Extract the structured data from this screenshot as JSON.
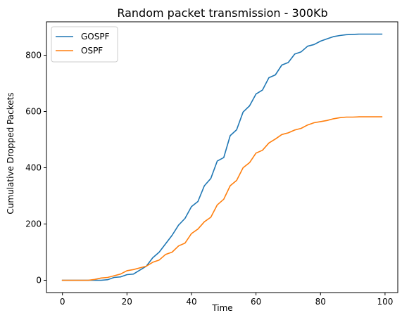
{
  "chart_data": {
    "type": "line",
    "title": "Random packet transmission - 300Kb",
    "xlabel": "Time",
    "ylabel": "Cumulative Dropped Packets",
    "xlim": [
      -4.95,
      103.95
    ],
    "ylim": [
      -43.75,
      918.75
    ],
    "xticks": [
      0,
      20,
      40,
      60,
      80,
      100
    ],
    "yticks": [
      0,
      200,
      400,
      600,
      800
    ],
    "grid": false,
    "legend_position": "upper-left",
    "series": [
      {
        "name": "GOSPF",
        "color": "#1f77b4",
        "points": [
          [
            0,
            0
          ],
          [
            2,
            0
          ],
          [
            4,
            0
          ],
          [
            6,
            0
          ],
          [
            8,
            0
          ],
          [
            10,
            0
          ],
          [
            12,
            0
          ],
          [
            14,
            2
          ],
          [
            16,
            10
          ],
          [
            18,
            12
          ],
          [
            20,
            20
          ],
          [
            22,
            22
          ],
          [
            24,
            36
          ],
          [
            26,
            50
          ],
          [
            28,
            80
          ],
          [
            30,
            100
          ],
          [
            32,
            130
          ],
          [
            34,
            160
          ],
          [
            36,
            196
          ],
          [
            38,
            220
          ],
          [
            40,
            262
          ],
          [
            42,
            280
          ],
          [
            44,
            336
          ],
          [
            46,
            362
          ],
          [
            48,
            424
          ],
          [
            50,
            436
          ],
          [
            52,
            514
          ],
          [
            54,
            535
          ],
          [
            56,
            598
          ],
          [
            58,
            620
          ],
          [
            60,
            662
          ],
          [
            62,
            676
          ],
          [
            64,
            720
          ],
          [
            66,
            730
          ],
          [
            68,
            765
          ],
          [
            70,
            774
          ],
          [
            72,
            804
          ],
          [
            74,
            812
          ],
          [
            76,
            832
          ],
          [
            78,
            838
          ],
          [
            80,
            850
          ],
          [
            82,
            858
          ],
          [
            84,
            866
          ],
          [
            86,
            870
          ],
          [
            88,
            873
          ],
          [
            90,
            874
          ],
          [
            92,
            875
          ],
          [
            94,
            875
          ],
          [
            96,
            875
          ],
          [
            98,
            875
          ],
          [
            99,
            875
          ]
        ]
      },
      {
        "name": "OSPF",
        "color": "#ff7f0e",
        "points": [
          [
            0,
            0
          ],
          [
            2,
            0
          ],
          [
            4,
            0
          ],
          [
            6,
            0
          ],
          [
            8,
            0
          ],
          [
            10,
            3
          ],
          [
            12,
            8
          ],
          [
            14,
            10
          ],
          [
            16,
            16
          ],
          [
            18,
            22
          ],
          [
            20,
            34
          ],
          [
            22,
            38
          ],
          [
            24,
            44
          ],
          [
            26,
            50
          ],
          [
            28,
            64
          ],
          [
            30,
            72
          ],
          [
            32,
            92
          ],
          [
            34,
            100
          ],
          [
            36,
            122
          ],
          [
            38,
            132
          ],
          [
            40,
            166
          ],
          [
            42,
            182
          ],
          [
            44,
            208
          ],
          [
            46,
            224
          ],
          [
            48,
            268
          ],
          [
            50,
            288
          ],
          [
            52,
            336
          ],
          [
            54,
            355
          ],
          [
            56,
            400
          ],
          [
            58,
            418
          ],
          [
            60,
            452
          ],
          [
            62,
            462
          ],
          [
            64,
            488
          ],
          [
            66,
            502
          ],
          [
            68,
            518
          ],
          [
            70,
            524
          ],
          [
            72,
            534
          ],
          [
            74,
            540
          ],
          [
            76,
            552
          ],
          [
            78,
            560
          ],
          [
            80,
            564
          ],
          [
            82,
            568
          ],
          [
            84,
            574
          ],
          [
            86,
            578
          ],
          [
            88,
            580
          ],
          [
            90,
            580
          ],
          [
            92,
            581
          ],
          [
            94,
            581
          ],
          [
            96,
            581
          ],
          [
            98,
            581
          ],
          [
            99,
            581
          ]
        ]
      }
    ]
  }
}
